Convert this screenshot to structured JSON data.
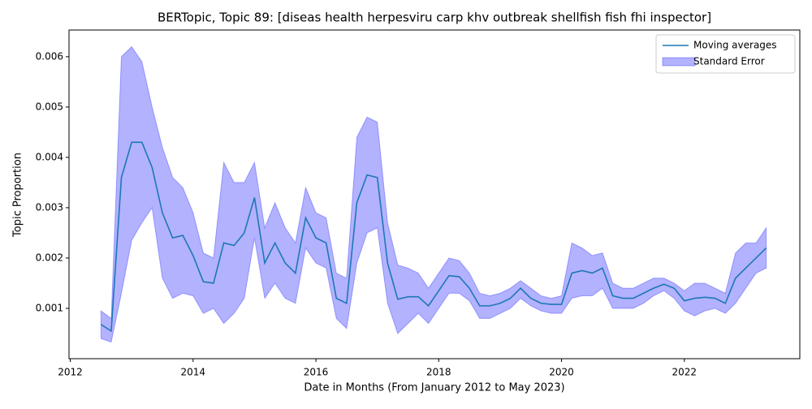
{
  "chart_data": {
    "type": "line",
    "title": "BERTopic, Topic 89: [diseas health herpesviru carp khv outbreak shellfish fish fhi inspector]",
    "xlabel": "Date in Months (From January 2012 to May 2023)",
    "ylabel": "Topic Proportion",
    "x": [
      2012.5,
      2012.667,
      2012.833,
      2013.0,
      2013.167,
      2013.333,
      2013.5,
      2013.667,
      2013.833,
      2014.0,
      2014.167,
      2014.333,
      2014.5,
      2014.667,
      2014.833,
      2015.0,
      2015.167,
      2015.333,
      2015.5,
      2015.667,
      2015.833,
      2016.0,
      2016.167,
      2016.333,
      2016.5,
      2016.667,
      2016.833,
      2017.0,
      2017.167,
      2017.333,
      2017.5,
      2017.667,
      2017.833,
      2018.0,
      2018.167,
      2018.333,
      2018.5,
      2018.667,
      2018.833,
      2019.0,
      2019.167,
      2019.333,
      2019.5,
      2019.667,
      2019.833,
      2020.0,
      2020.167,
      2020.333,
      2020.5,
      2020.667,
      2020.833,
      2021.0,
      2021.167,
      2021.333,
      2021.5,
      2021.667,
      2021.833,
      2022.0,
      2022.167,
      2022.333,
      2022.5,
      2022.667,
      2022.833,
      2023.0,
      2023.167,
      2023.333
    ],
    "series": [
      {
        "name": "Moving averages",
        "color": "#1f77b4",
        "values": [
          0.00068,
          0.00055,
          0.0036,
          0.0043,
          0.0043,
          0.0038,
          0.0029,
          0.0024,
          0.00245,
          0.00205,
          0.00153,
          0.0015,
          0.0023,
          0.00225,
          0.0025,
          0.0032,
          0.0019,
          0.0023,
          0.0019,
          0.0017,
          0.0028,
          0.0024,
          0.0023,
          0.0012,
          0.0011,
          0.0031,
          0.00365,
          0.0036,
          0.0019,
          0.00118,
          0.00123,
          0.00123,
          0.00105,
          0.00135,
          0.00165,
          0.00163,
          0.0014,
          0.00105,
          0.00105,
          0.0011,
          0.0012,
          0.0014,
          0.0012,
          0.0011,
          0.00108,
          0.00108,
          0.0017,
          0.00175,
          0.0017,
          0.0018,
          0.00125,
          0.0012,
          0.0012,
          0.0013,
          0.0014,
          0.00148,
          0.0014,
          0.00115,
          0.0012,
          0.00122,
          0.0012,
          0.0011,
          0.0016,
          0.0018,
          0.002,
          0.0022
        ]
      },
      {
        "name": "Standard Error",
        "color": "#0000ff",
        "lower": [
          0.0004,
          0.00033,
          0.0013,
          0.00235,
          0.0027,
          0.003,
          0.0016,
          0.0012,
          0.0013,
          0.00125,
          0.0009,
          0.001,
          0.0007,
          0.0009,
          0.0012,
          0.0024,
          0.0012,
          0.0015,
          0.0012,
          0.0011,
          0.0022,
          0.0019,
          0.0018,
          0.0008,
          0.0006,
          0.0019,
          0.0025,
          0.0026,
          0.0011,
          0.0005,
          0.0007,
          0.0009,
          0.0007,
          0.001,
          0.0013,
          0.0013,
          0.00115,
          0.0008,
          0.0008,
          0.0009,
          0.001,
          0.0012,
          0.00105,
          0.00095,
          0.0009,
          0.0009,
          0.0012,
          0.00125,
          0.00125,
          0.0014,
          0.001,
          0.001,
          0.001,
          0.0011,
          0.00125,
          0.00135,
          0.0012,
          0.00095,
          0.00085,
          0.00095,
          0.001,
          0.0009,
          0.0011,
          0.0014,
          0.0017,
          0.0018
        ],
        "upper": [
          0.00095,
          0.0008,
          0.006,
          0.0062,
          0.0059,
          0.005,
          0.0042,
          0.0036,
          0.0034,
          0.0029,
          0.0021,
          0.002,
          0.0039,
          0.0035,
          0.0035,
          0.0039,
          0.0026,
          0.0031,
          0.0026,
          0.0023,
          0.0034,
          0.0029,
          0.0028,
          0.0017,
          0.0016,
          0.0044,
          0.0048,
          0.0047,
          0.0027,
          0.00186,
          0.0018,
          0.0017,
          0.0014,
          0.0017,
          0.002,
          0.00195,
          0.0017,
          0.0013,
          0.00125,
          0.0013,
          0.0014,
          0.00155,
          0.0014,
          0.00125,
          0.0012,
          0.00125,
          0.0023,
          0.0022,
          0.00205,
          0.0021,
          0.0015,
          0.0014,
          0.0014,
          0.0015,
          0.0016,
          0.0016,
          0.0015,
          0.00135,
          0.0015,
          0.0015,
          0.0014,
          0.0013,
          0.0021,
          0.0023,
          0.0023,
          0.0026
        ]
      }
    ],
    "xlim": [
      2011.98,
      2023.88
    ],
    "xticks": [
      2012,
      2014,
      2016,
      2018,
      2020,
      2022
    ],
    "ylim": [
      0,
      0.00653
    ],
    "yticks": [
      0.001,
      0.002,
      0.003,
      0.004,
      0.005,
      0.006
    ],
    "legend": "upper right",
    "grid": false
  }
}
